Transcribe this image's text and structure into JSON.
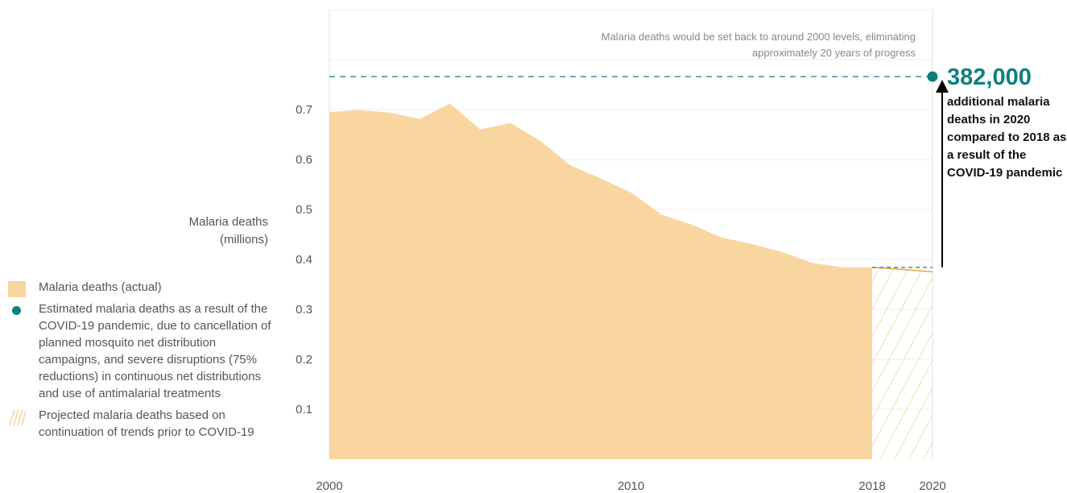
{
  "chart_data": {
    "type": "area",
    "ylabel": "Malaria deaths\n(millions)",
    "x_ticks": [
      2000,
      2010,
      2018,
      2020
    ],
    "y_ticks": [
      0.1,
      0.2,
      0.3,
      0.4,
      0.5,
      0.6,
      0.7
    ],
    "xlim": [
      2000,
      2020
    ],
    "ylim": [
      0,
      0.8
    ],
    "series": [
      {
        "name": "Malaria deaths (actual)",
        "x": [
          2000,
          2001,
          2002,
          2003,
          2004,
          2005,
          2006,
          2007,
          2008,
          2009,
          2010,
          2011,
          2012,
          2013,
          2014,
          2015,
          2016,
          2017,
          2018
        ],
        "values": [
          0.695,
          0.699,
          0.694,
          0.681,
          0.712,
          0.66,
          0.673,
          0.637,
          0.588,
          0.562,
          0.534,
          0.49,
          0.47,
          0.444,
          0.431,
          0.415,
          0.393,
          0.384,
          0.384
        ]
      },
      {
        "name": "Projected malaria deaths based on continuation of trends prior to COVID-19",
        "x": [
          2018,
          2019,
          2020
        ],
        "values": [
          0.384,
          0.38,
          0.375
        ]
      },
      {
        "name": "Estimated malaria deaths as a result of the COVID-19 pandemic, due to cancellation of planned mosquito net distribution campaigns, and severe disruptions (75% reductions) in continuous net distributions and use of antimalarial treatments",
        "x": [
          2020
        ],
        "values": [
          0.766
        ]
      }
    ],
    "reference_lines": [
      {
        "y": 0.766,
        "style": "dashed"
      },
      {
        "y": 0.384,
        "style": "dashed",
        "x_start": 2018
      }
    ],
    "legend": [
      "Malaria deaths (actual)",
      "Estimated malaria deaths as a result of the COVID-19 pandemic, due to cancellation of planned mosquito net distribution campaigns, and severe disruptions (75% reductions) in continuous net distributions and use of antimalarial treatments",
      "Projected malaria deaths based on continuation of trends prior to COVID-19"
    ],
    "annotations": {
      "top_note": "Malaria deaths would be set back to around 2000 levels, eliminating approximately 20 years of progress",
      "callout_value": "382,000",
      "callout_text": "additional malaria deaths in 2020 compared to 2018 as a result of the COVID-19 pandemic"
    }
  },
  "colors": {
    "actual_fill": "#f9d69f",
    "projected_line": "#e8a53c",
    "estimate_dot": "#0e7f7f",
    "dashed_line": "#2e8a8f",
    "grid": "#ececec",
    "hatch": "#f3cd93",
    "arrow": "#000000"
  }
}
